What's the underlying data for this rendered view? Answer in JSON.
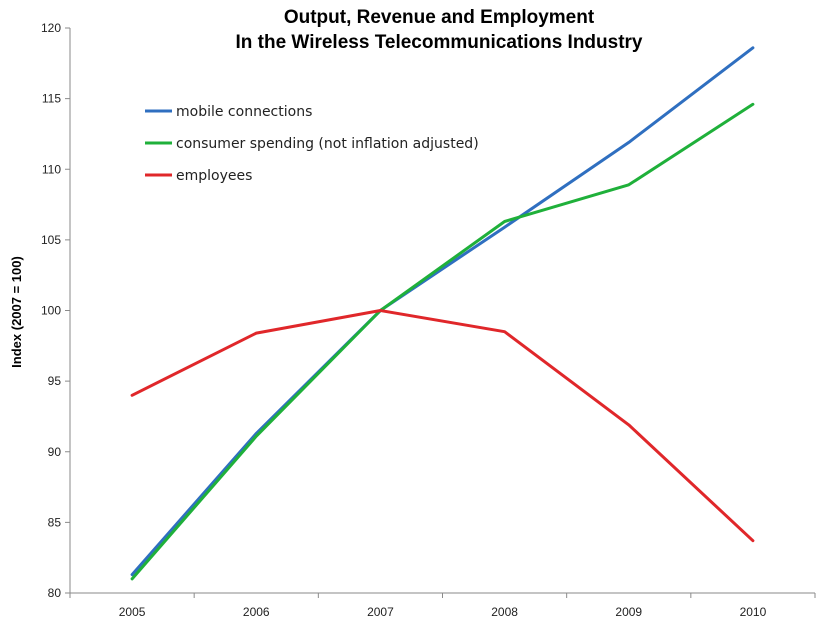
{
  "chart_data": {
    "type": "line",
    "title": "Output, Revenue and Employment",
    "subtitle": "In the Wireless Telecommunications Industry",
    "xlabel": "",
    "ylabel": "Index (2007 = 100)",
    "x": [
      "2005",
      "2006",
      "2007",
      "2008",
      "2009",
      "2010"
    ],
    "ylim": [
      80,
      120
    ],
    "yticks": [
      80,
      85,
      90,
      95,
      100,
      105,
      110,
      115,
      120
    ],
    "grid": false,
    "legend_position": "top-left",
    "series": [
      {
        "name": "mobile connections",
        "color": "#2f6fc0",
        "values": [
          81.3,
          91.3,
          100,
          105.9,
          111.9,
          118.6
        ]
      },
      {
        "name": "consumer spending (not inflation adjusted)",
        "color": "#1fb03a",
        "values": [
          81.0,
          91.1,
          100,
          106.3,
          108.9,
          114.6
        ]
      },
      {
        "name": "employees",
        "color": "#e0272a",
        "values": [
          94.0,
          98.4,
          100,
          98.5,
          91.9,
          83.7
        ]
      }
    ]
  }
}
